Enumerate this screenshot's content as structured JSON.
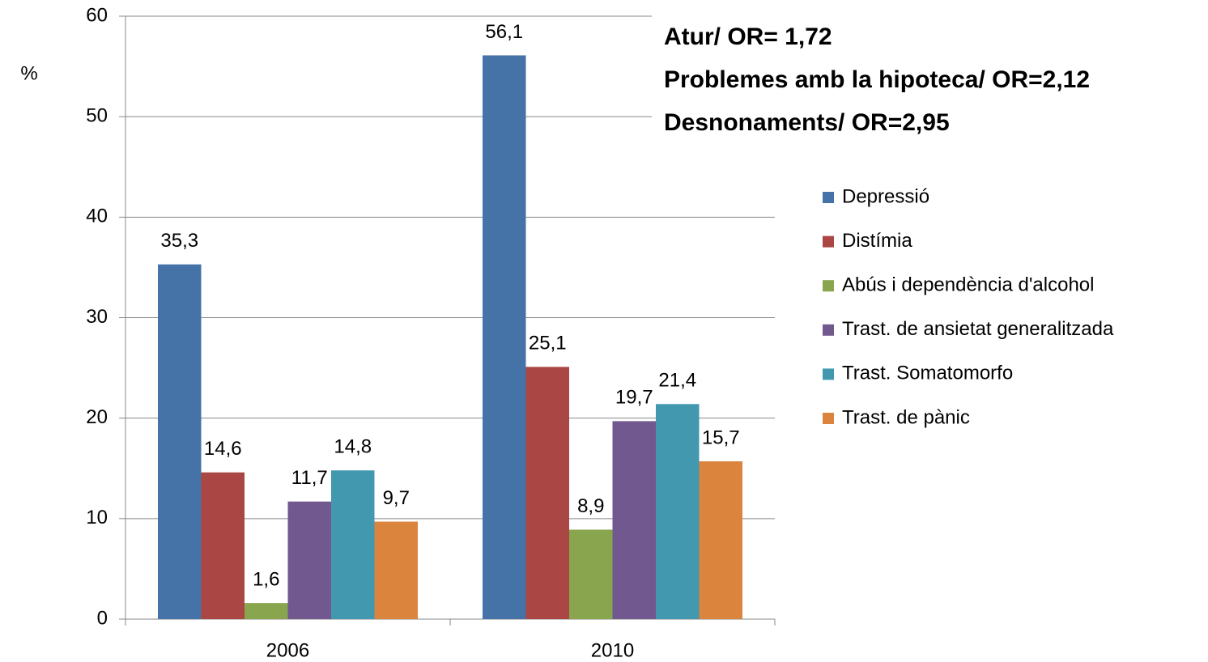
{
  "chart_data": {
    "type": "bar",
    "y_label": "%",
    "annotations": [
      "Atur/ OR= 1,72",
      "Problemes amb la hipoteca/ OR=2,12",
      "Desnonaments/ OR=2,95"
    ],
    "categories": [
      "2006",
      "2010"
    ],
    "series": [
      {
        "name": "Depressió",
        "color": "#4572a7",
        "values": [
          35.3,
          56.1
        ],
        "value_labels": [
          "35,3",
          "56,1"
        ]
      },
      {
        "name": "Distímia",
        "color": "#aa4643",
        "values": [
          14.6,
          25.1
        ],
        "value_labels": [
          "14,6",
          "25,1"
        ]
      },
      {
        "name": "Abús i dependència d'alcohol",
        "color": "#89a54e",
        "values": [
          1.6,
          8.9
        ],
        "value_labels": [
          "1,6",
          "8,9"
        ]
      },
      {
        "name": "Trast. de ansietat generalitzada",
        "color": "#71588f",
        "values": [
          11.7,
          19.7
        ],
        "value_labels": [
          "11,7",
          "19,7"
        ]
      },
      {
        "name": "Trast. Somatomorfo",
        "color": "#4198af",
        "values": [
          14.8,
          21.4
        ],
        "value_labels": [
          "14,8",
          "21,4"
        ]
      },
      {
        "name": "Trast. de pànic",
        "color": "#db843d",
        "values": [
          9.7,
          15.7
        ],
        "value_labels": [
          "9,7",
          "15,7"
        ]
      }
    ],
    "ylim": [
      0,
      60
    ],
    "yticks": [
      0,
      10,
      20,
      30,
      40,
      50,
      60
    ],
    "grid": true,
    "legend": "right"
  }
}
